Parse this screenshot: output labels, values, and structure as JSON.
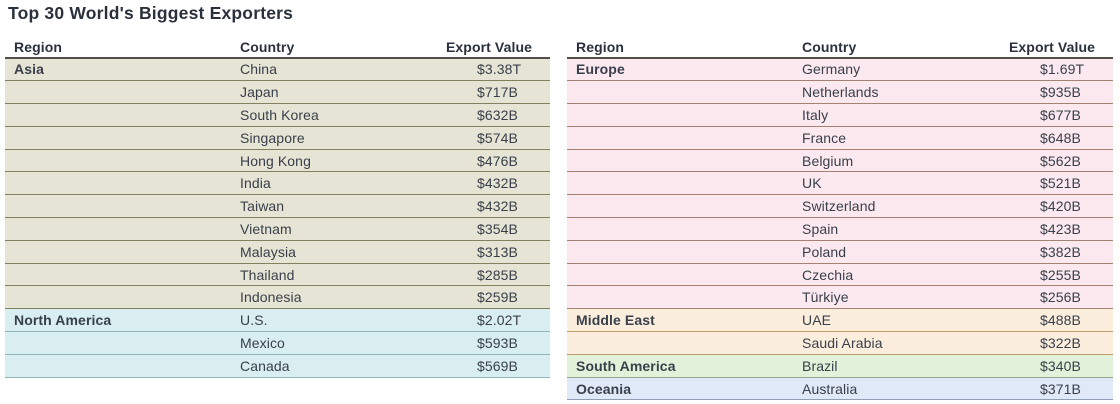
{
  "styles": {
    "text_color": "#39404b",
    "heading_color": "#2b313c",
    "header_underline_color": "#524f47",
    "background_color": "#ffffff"
  },
  "chart_data": {
    "type": "table",
    "title": "Top 30 World's Biggest Exporters",
    "columns": [
      "Region",
      "Country",
      "Export Value"
    ],
    "layout": {
      "legend": "none",
      "grid": "row-separators",
      "panels": 2
    },
    "tables": [
      {
        "sections": [
          {
            "region": "Asia",
            "fill": "#e6e4d4",
            "line": "#83805d",
            "rows": [
              {
                "country": "China",
                "value": "$3.38T"
              },
              {
                "country": "Japan",
                "value": "$717B"
              },
              {
                "country": "South Korea",
                "value": "$632B"
              },
              {
                "country": "Singapore",
                "value": "$574B"
              },
              {
                "country": "Hong Kong",
                "value": "$476B"
              },
              {
                "country": "India",
                "value": "$432B"
              },
              {
                "country": "Taiwan",
                "value": "$432B"
              },
              {
                "country": "Vietnam",
                "value": "$354B"
              },
              {
                "country": "Malaysia",
                "value": "$313B"
              },
              {
                "country": "Thailand",
                "value": "$285B"
              },
              {
                "country": "Indonesia",
                "value": "$259B"
              }
            ]
          },
          {
            "region": "North America",
            "fill": "#d9eef1",
            "line": "#93b4b6",
            "rows": [
              {
                "country": "U.S.",
                "value": "$2.02T"
              },
              {
                "country": "Mexico",
                "value": "$593B"
              },
              {
                "country": "Canada",
                "value": "$569B"
              }
            ]
          }
        ]
      },
      {
        "sections": [
          {
            "region": "Europe",
            "fill": "#fce9ef",
            "line": "#a5826f",
            "rows": [
              {
                "country": "Germany",
                "value": "$1.69T"
              },
              {
                "country": "Netherlands",
                "value": "$935B"
              },
              {
                "country": "Italy",
                "value": "$677B"
              },
              {
                "country": "France",
                "value": "$648B"
              },
              {
                "country": "Belgium",
                "value": "$562B"
              },
              {
                "country": "UK",
                "value": "$521B"
              },
              {
                "country": "Switzerland",
                "value": "$420B"
              },
              {
                "country": "Spain",
                "value": "$423B"
              },
              {
                "country": "Poland",
                "value": "$382B"
              },
              {
                "country": "Czechia",
                "value": "$255B"
              },
              {
                "country": "Türkiye",
                "value": "$256B"
              }
            ]
          },
          {
            "region": "Middle East",
            "fill": "#fbeedd",
            "line": "#c19c70",
            "rows": [
              {
                "country": "UAE",
                "value": "$488B"
              },
              {
                "country": "Saudi Arabia",
                "value": "$322B"
              }
            ]
          },
          {
            "region": "South America",
            "fill": "#e2f1da",
            "line": "#91a988",
            "rows": [
              {
                "country": "Brazil",
                "value": "$340B"
              }
            ]
          },
          {
            "region": "Oceania",
            "fill": "#e0e9f8",
            "line": "#8f9db7",
            "rows": [
              {
                "country": "Australia",
                "value": "$371B"
              }
            ]
          }
        ]
      }
    ]
  }
}
